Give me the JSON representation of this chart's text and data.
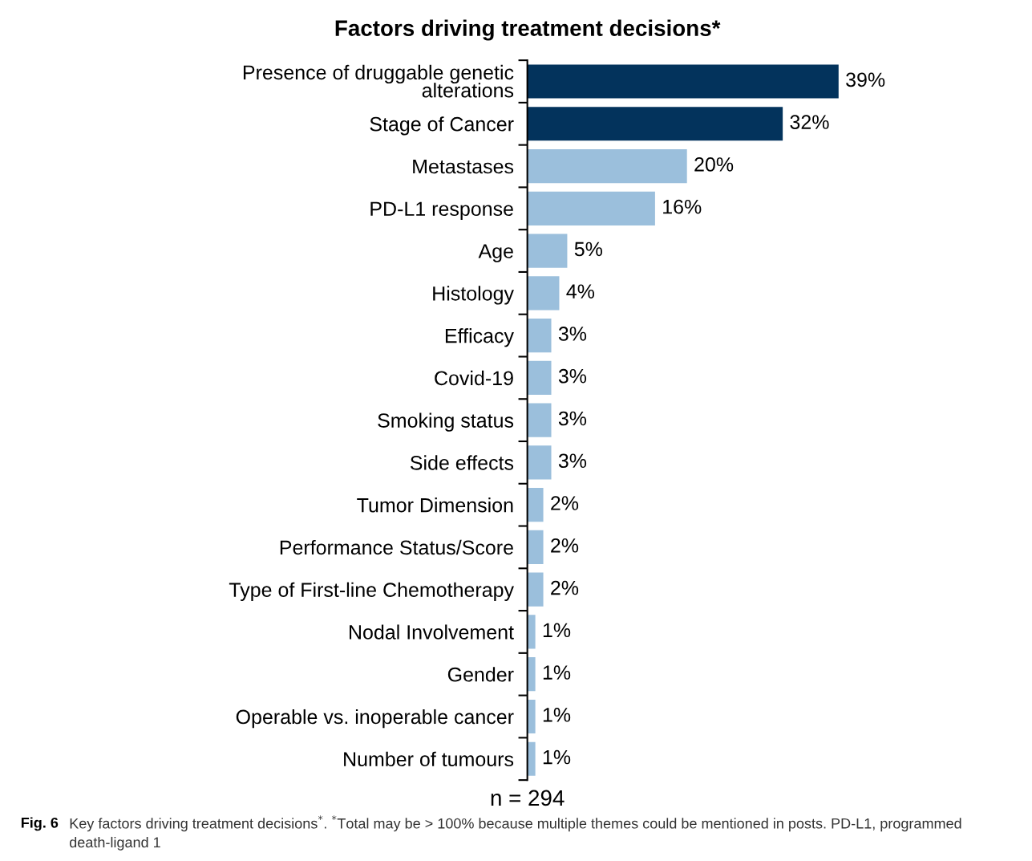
{
  "chart_data": {
    "type": "bar",
    "orientation": "horizontal",
    "title": "Factors driving treatment decisions*",
    "categories": [
      "Presence of druggable genetic\nalterations",
      "Stage of Cancer",
      "Metastases",
      "PD-L1 response",
      "Age",
      "Histology",
      "Efficacy",
      "Covid-19",
      "Smoking status",
      "Side effects",
      "Tumor Dimension",
      "Performance Status/Score",
      "Type of First-line Chemotherapy",
      "Nodal Involvement",
      "Gender",
      "Operable vs. inoperable cancer",
      "Number of tumours"
    ],
    "values": [
      39,
      32,
      20,
      16,
      5,
      4,
      3,
      3,
      3,
      3,
      2,
      2,
      2,
      1,
      1,
      1,
      1
    ],
    "value_labels": [
      "39%",
      "32%",
      "20%",
      "16%",
      "5%",
      "4%",
      "3%",
      "3%",
      "3%",
      "3%",
      "2%",
      "2%",
      "2%",
      "1%",
      "1%",
      "1%",
      "1%"
    ],
    "colors": [
      "#03335c",
      "#03335c",
      "#9bbfdc",
      "#9bbfdc",
      "#9bbfdc",
      "#9bbfdc",
      "#9bbfdc",
      "#9bbfdc",
      "#9bbfdc",
      "#9bbfdc",
      "#9bbfdc",
      "#9bbfdc",
      "#9bbfdc",
      "#9bbfdc",
      "#9bbfdc",
      "#9bbfdc",
      "#9bbfdc"
    ],
    "annotations": [
      "n = 294",
      "Fig. 6",
      "Key factors driving treatment decisions$^{*}$. $^{*}$Total may be > 100% because multiple themes could be mentioned in posts. PD-L1, programmed death-ligand 1"
    ],
    "grid": false,
    "legend": false
  }
}
